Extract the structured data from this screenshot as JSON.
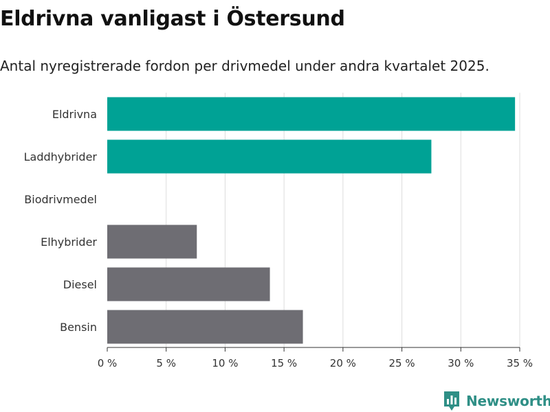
{
  "title": "Eldrivna vanligast i Östersund",
  "subtitle": "Antal nyregistrerade fordon per drivmedel under andra kvartalet 2025.",
  "brand": {
    "name": "Newsworthy",
    "logo_icon": "bar-chart-logo-icon",
    "color": "#2f8f86"
  },
  "chart_data": {
    "type": "bar",
    "orientation": "horizontal",
    "categories": [
      "Eldrivna",
      "Laddhybrider",
      "Biodrivmedel",
      "Elhybrider",
      "Diesel",
      "Bensin"
    ],
    "values": [
      34.6,
      27.5,
      0,
      7.6,
      13.8,
      16.6
    ],
    "colors": [
      "#00a295",
      "#00a295",
      "#00a295",
      "#6e6d73",
      "#6e6d73",
      "#6e6d73"
    ],
    "xlim": [
      0,
      35
    ],
    "xticks": [
      0,
      5,
      10,
      15,
      20,
      25,
      30,
      35
    ],
    "xtick_labels": [
      "0 %",
      "5 %",
      "10 %",
      "15 %",
      "20 %",
      "25 %",
      "30 %",
      "35 %"
    ],
    "grid": true
  }
}
